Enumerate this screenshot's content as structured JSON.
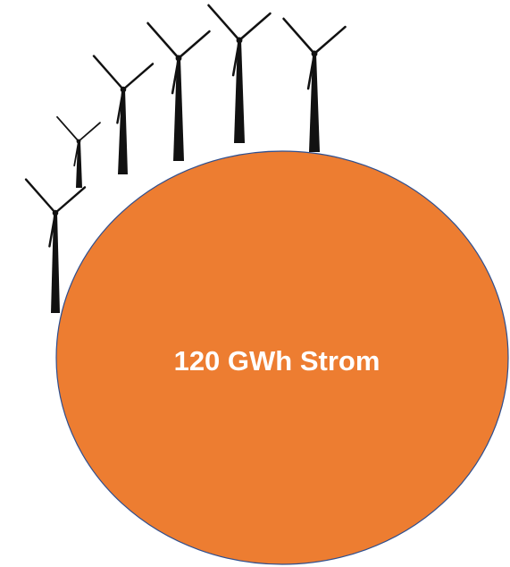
{
  "label": "120 GWh Strom"
}
